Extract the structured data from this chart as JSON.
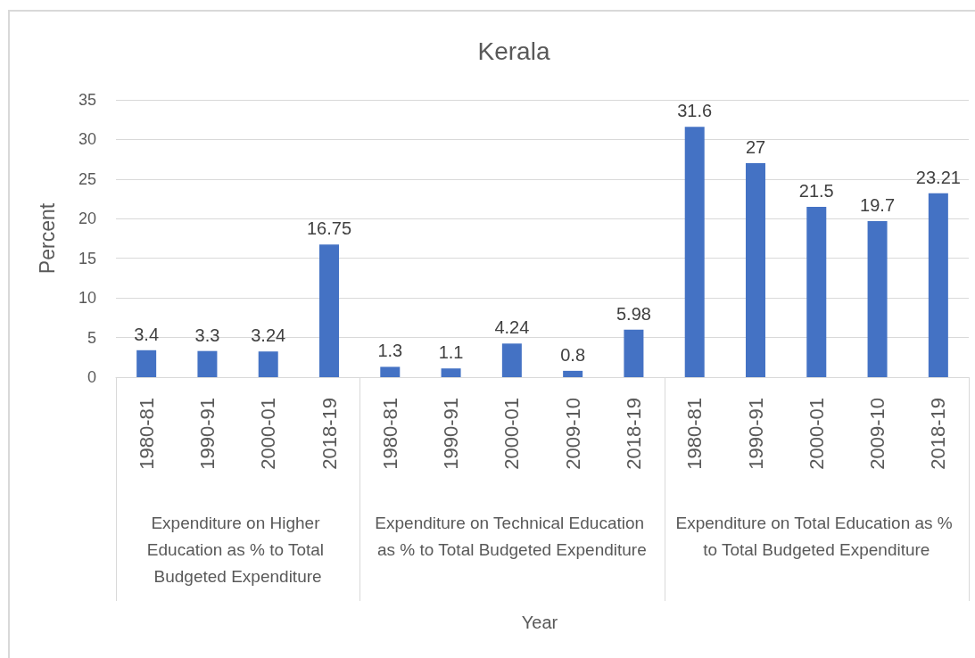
{
  "chart_data": {
    "type": "bar",
    "title": "Kerala",
    "ylabel": "Percent",
    "categories": [
      "1980-81",
      "1990-91",
      "2000-01",
      "2018-19",
      "1980-81",
      "1990-91",
      "2000-01",
      "2009-10",
      "2018-19",
      "1980-81",
      "1990-91",
      "2000-01",
      "2009-10",
      "2018-19"
    ],
    "series": [
      {
        "color": "#4472c4",
        "values": [
          3.4,
          3.3,
          3.24,
          16.75,
          null,
          null,
          null,
          null,
          null,
          null,
          null,
          null,
          null,
          null
        ]
      },
      {
        "color": "#4472c4",
        "values": [
          null,
          null,
          null,
          null,
          1.3,
          1.1,
          4.24,
          0.8,
          5.98,
          null,
          null,
          null,
          null,
          null
        ]
      },
      {
        "color": "#4472c4",
        "values": [
          null,
          null,
          null,
          null,
          null,
          null,
          null,
          null,
          null,
          31.6,
          27,
          21.5,
          19.7,
          23.21
        ]
      }
    ],
    "annotations": [
      "Expenditure on Higher Education as % to Total Budgeted Expenditure",
      "Expenditure on Technical Education as % to Total Budgeted Expenditure",
      "Expenditure on Total Education as % to Total Budgeted Expenditure",
      "Year"
    ],
    "ylim": [
      0,
      35
    ],
    "yticks": [
      0,
      5,
      10,
      15,
      20,
      25,
      30,
      35
    ],
    "grid": "y",
    "data_labels": true
  }
}
